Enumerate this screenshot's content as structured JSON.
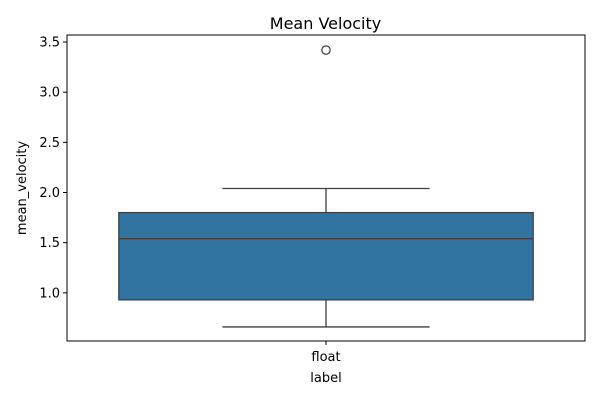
{
  "chart_data": {
    "type": "box",
    "title": "Mean Velocity",
    "xlabel": "label",
    "ylabel": "mean_velocity",
    "categories": [
      "float"
    ],
    "boxes": [
      {
        "category": "float",
        "whisker_low": 0.66,
        "q1": 0.93,
        "median": 1.54,
        "q3": 1.8,
        "whisker_high": 2.04,
        "outliers": [
          3.42
        ]
      }
    ],
    "ylim": [
      0.52,
      3.57
    ],
    "yticks": [
      1.0,
      1.5,
      2.0,
      2.5,
      3.0,
      3.5
    ],
    "ytick_labels": [
      "1.0",
      "1.5",
      "2.0",
      "2.5",
      "3.0",
      "3.5"
    ],
    "grid": false,
    "box_color": "#3274a1",
    "line_color": "#3f3f3f"
  }
}
